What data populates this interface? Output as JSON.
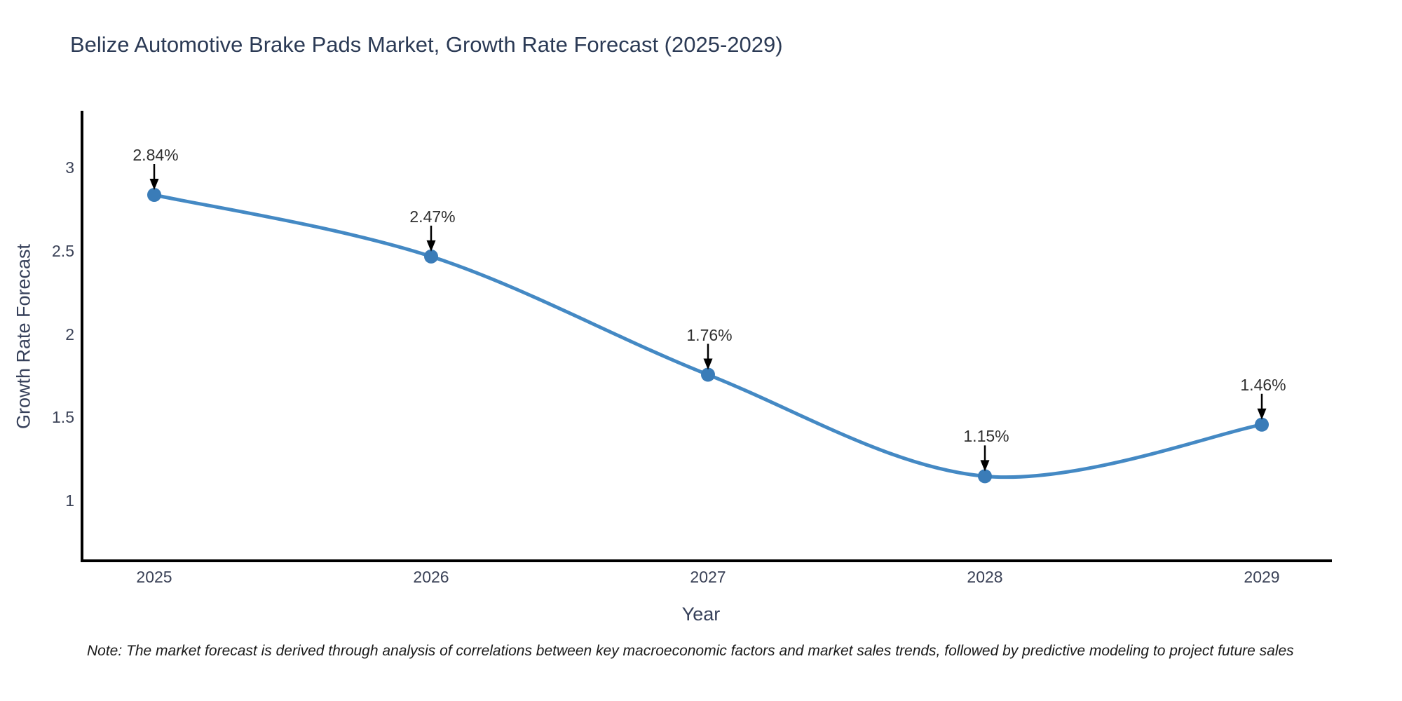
{
  "chart_data": {
    "type": "line",
    "title": "Belize Automotive Brake Pads Market, Growth Rate Forecast (2025-2029)",
    "xlabel": "Year",
    "ylabel": "Growth Rate Forecast",
    "x": [
      2025,
      2026,
      2027,
      2028,
      2029
    ],
    "values": [
      2.84,
      2.47,
      1.76,
      1.15,
      1.46
    ],
    "annotations": [
      "2.84%",
      "2.47%",
      "1.76%",
      "1.15%",
      "1.46%"
    ],
    "xtick_labels": [
      "2025",
      "2026",
      "2027",
      "2028",
      "2029"
    ],
    "ytick_labels": [
      "1",
      "1.5",
      "2",
      "2.5",
      "3"
    ],
    "ytick_values": [
      1,
      1.5,
      2,
      2.5,
      3
    ],
    "ylim": [
      0.64,
      3.34
    ],
    "xlim": [
      2024.74,
      2029.25
    ],
    "grid": false,
    "legend": "none",
    "line_color": "#4489c4",
    "marker_color": "#3a7cb8",
    "arrow_color": "#000000",
    "axis_color": "#000000",
    "title_color": "#2b3a55",
    "note": "Note: The market forecast is derived through analysis of correlations between key macroeconomic factors and market sales trends, followed by predictive modeling to project future sales"
  }
}
